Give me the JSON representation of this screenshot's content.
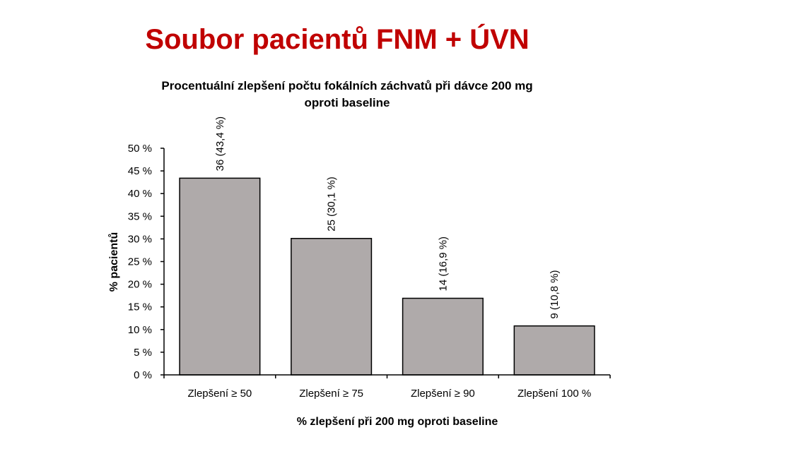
{
  "slide": {
    "title": "Soubor pacientů FNM + ÚVN",
    "title_color": "#C00000"
  },
  "chart_data": {
    "type": "bar",
    "title_lines": [
      "Procentuální zlepšení počtu fokálních záchvatů při dávce 200 mg",
      "oproti baseline"
    ],
    "xlabel": "% zlepšení při 200 mg oproti baseline",
    "ylabel": "% pacientů",
    "categories": [
      "Zlepšení ≥ 50",
      "Zlepšení ≥ 75",
      "Zlepšení ≥ 90",
      "Zlepšení 100 %"
    ],
    "values": [
      43.4,
      30.1,
      16.9,
      10.8
    ],
    "data_labels": [
      "36 (43,4 %)",
      "25 (30,1 %)",
      "14 (16,9 %)",
      "9 (10,8 %)"
    ],
    "ylim": [
      0,
      50
    ],
    "yticks": [
      0,
      5,
      10,
      15,
      20,
      25,
      30,
      35,
      40,
      45,
      50
    ],
    "ytick_labels": [
      "0 %",
      "5 %",
      "10 %",
      "15 %",
      "20 %",
      "25 %",
      "30 %",
      "35 %",
      "40 %",
      "45 %",
      "50 %"
    ],
    "grid": false,
    "bar_color": "#AFAAAA"
  }
}
